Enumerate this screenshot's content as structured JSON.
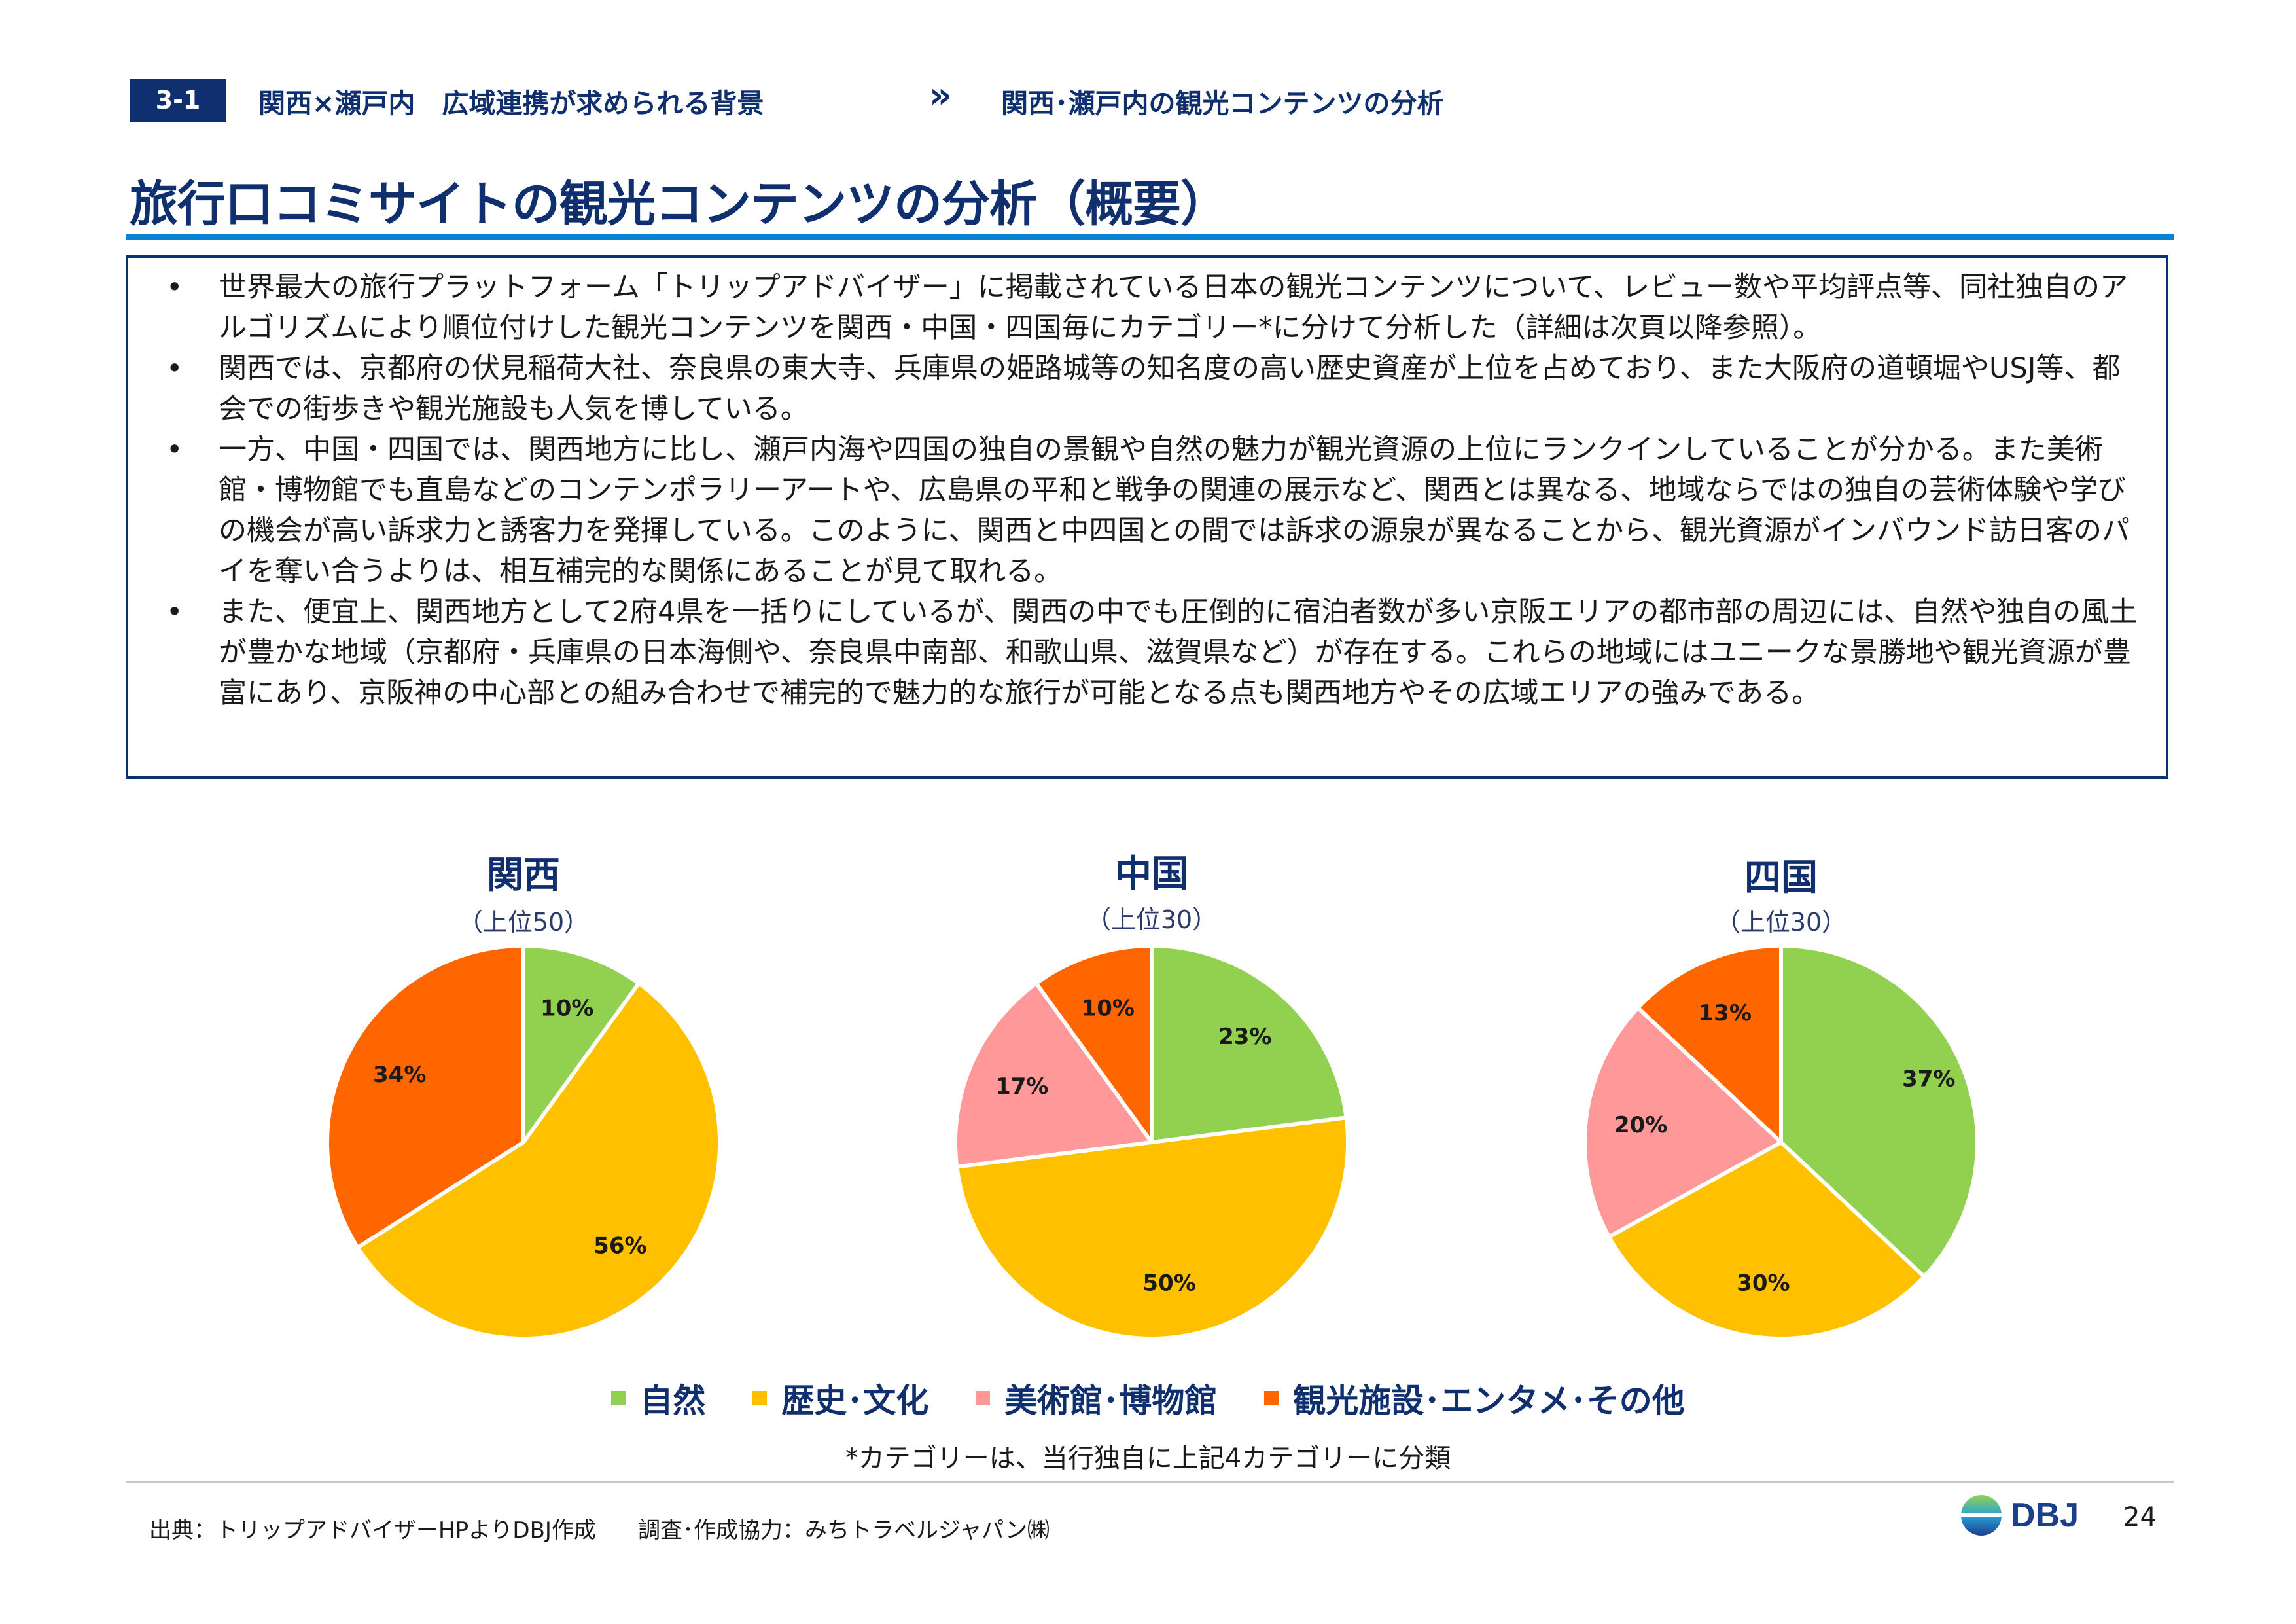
{
  "header": {
    "section_badge": "3-1",
    "breadcrumb_1": "関西×瀬戸内　広域連携が求められる背景",
    "breadcrumb_sep": "»",
    "breadcrumb_2": "関西･瀬戸内の観光コンテンツの分析"
  },
  "title": "旅行口コミサイトの観光コンテンツの分析（概要）",
  "bullets": [
    "世界最大の旅行プラットフォーム「トリップアドバイザー」に掲載されている日本の観光コンテンツについて、レビュー数や平均評点等、同社独自のアルゴリズムにより順位付けした観光コンテンツを関西・中国・四国毎にカテゴリー*に分けて分析した（詳細は次頁以降参照）。",
    "関西では、京都府の伏見稲荷大社、奈良県の東大寺、兵庫県の姫路城等の知名度の高い歴史資産が上位を占めており、また大阪府の道頓堀やUSJ等、都会での街歩きや観光施設も人気を博している。",
    "一方、中国・四国では、関西地方に比し、瀬戸内海や四国の独自の景観や自然の魅力が観光資源の上位にランクインしていることが分かる。また美術館・博物館でも直島などのコンテンポラリーアートや、広島県の平和と戦争の関連の展示など、関西とは異なる、地域ならではの独自の芸術体験や学びの機会が高い訴求力と誘客力を発揮している。このように、関西と中四国との間では訴求の源泉が異なることから、観光資源がインバウンド訪日客のパイを奪い合うよりは、相互補完的な関係にあることが見て取れる。",
    "また、便宜上、関西地方として2府4県を一括りにしているが、関西の中でも圧倒的に宿泊者数が多い京阪エリアの都市部の周辺には、自然や独自の風土が豊かな地域（京都府・兵庫県の日本海側や、奈良県中南部、和歌山県、滋賀県など）が存在する。これらの地域にはユニークな景勝地や観光資源が豊富にあり、京阪神の中心部との組み合わせで補完的で魅力的な旅行が可能となる点も関西地方やその広域エリアの強みである。"
  ],
  "bullet_symbol": "•",
  "chart_data": [
    {
      "type": "pie",
      "title": "関西",
      "subtitle": "（上位50）",
      "categories": [
        "自然",
        "歴史・文化",
        "美術館・博物館",
        "観光施設・エンタメ・その他"
      ],
      "values": [
        10,
        56,
        0,
        34
      ],
      "labels": [
        "10%",
        "56%",
        "",
        "34%"
      ],
      "colors": [
        "#92d050",
        "#ffc000",
        "#ff9999",
        "#ff6600"
      ]
    },
    {
      "type": "pie",
      "title": "中国",
      "subtitle": "（上位30）",
      "categories": [
        "自然",
        "歴史・文化",
        "美術館・博物館",
        "観光施設・エンタメ・その他"
      ],
      "values": [
        23,
        50,
        17,
        10
      ],
      "labels": [
        "23%",
        "50%",
        "17%",
        "10%"
      ],
      "colors": [
        "#92d050",
        "#ffc000",
        "#ff9999",
        "#ff6600"
      ]
    },
    {
      "type": "pie",
      "title": "四国",
      "subtitle": "（上位30）",
      "categories": [
        "自然",
        "歴史・文化",
        "美術館・博物館",
        "観光施設・エンタメ・その他"
      ],
      "values": [
        37,
        30,
        20,
        13
      ],
      "labels": [
        "37%",
        "30%",
        "20%",
        "13%"
      ],
      "colors": [
        "#92d050",
        "#ffc000",
        "#ff9999",
        "#ff6600"
      ]
    }
  ],
  "legend": [
    {
      "label": "自然",
      "color": "#92d050"
    },
    {
      "label": "歴史･文化",
      "color": "#ffc000"
    },
    {
      "label": "美術館･博物館",
      "color": "#ff9999"
    },
    {
      "label": "観光施設･エンタメ･その他",
      "color": "#ff6600"
    }
  ],
  "footnote": "*カテゴリーは、当行独自に上記4カテゴリーに分類",
  "footer": {
    "source": "出典：トリップアドバイザーHPよりDBJ作成",
    "cooperation": "調査･作成協力：みちトラベルジャパン㈱",
    "logo_text": "DBJ",
    "page_number": "24"
  }
}
